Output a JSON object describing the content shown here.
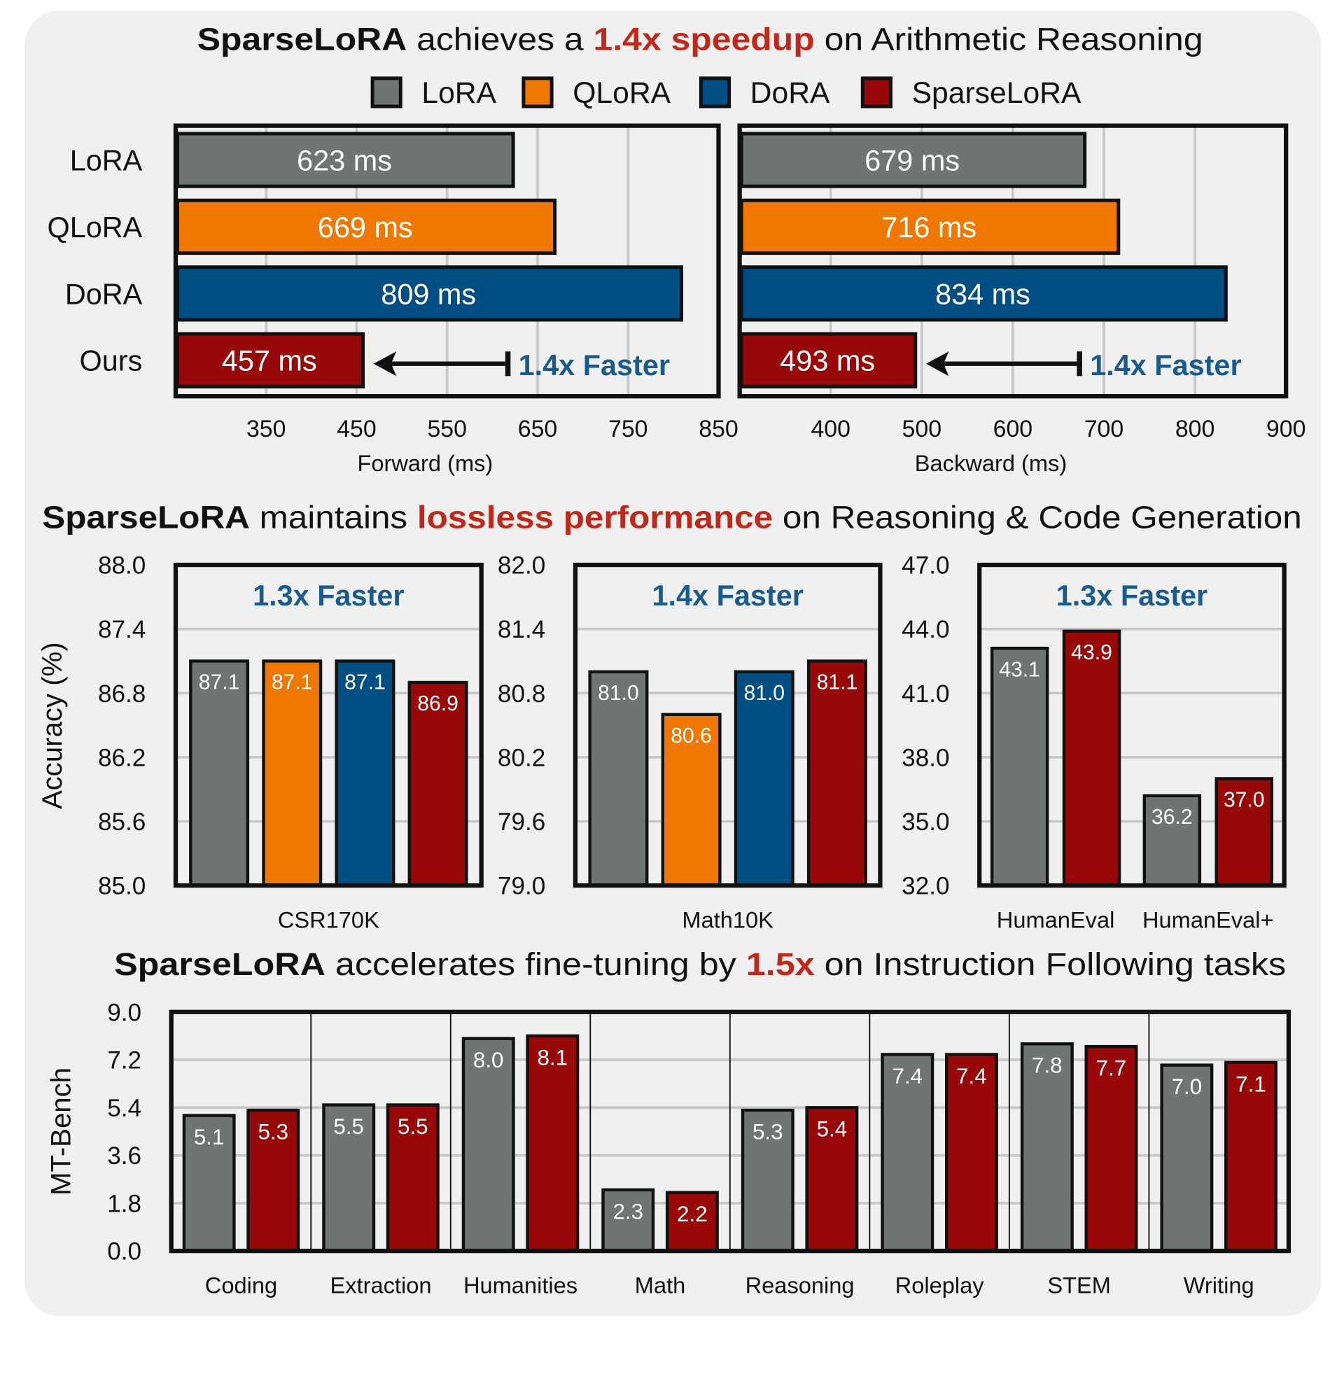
{
  "titles": [
    {
      "parts": [
        {
          "text": "SparseLoRA",
          "style": "bold"
        },
        {
          "text": " achieves a ",
          "style": "normal"
        },
        {
          "text": "1.4x speedup",
          "style": "bold-red"
        },
        {
          "text": " on Arithmetic Reasoning",
          "style": "normal"
        }
      ]
    },
    {
      "parts": [
        {
          "text": "SparseLoRA",
          "style": "bold"
        },
        {
          "text": " maintains ",
          "style": "normal"
        },
        {
          "text": "lossless performance",
          "style": "bold-red"
        },
        {
          "text": " on Reasoning & Code Generation",
          "style": "normal"
        }
      ]
    },
    {
      "parts": [
        {
          "text": "SparseLoRA",
          "style": "bold"
        },
        {
          "text": " accelerates fine-tuning by ",
          "style": "normal"
        },
        {
          "text": "1.5x",
          "style": "bold-red"
        },
        {
          "text": " on Instruction Following tasks",
          "style": "normal"
        }
      ]
    }
  ],
  "legend": [
    {
      "label": "LoRA",
      "color": "#6e7572"
    },
    {
      "label": "QLoRA",
      "color": "#f07800"
    },
    {
      "label": "DoRA",
      "color": "#004f84"
    },
    {
      "label": "SparseLoRA",
      "color": "#990808"
    }
  ],
  "colors": {
    "title_red": "#c0281a",
    "annotation_blue": "#1b5a8c",
    "panel": "#f0f0f0",
    "grid": "#c8c8c8"
  },
  "chart_data": [
    {
      "type": "bar",
      "orientation": "horizontal",
      "xlabel": "Forward (ms)",
      "xlim": [
        250,
        850
      ],
      "xticks": [
        350,
        450,
        550,
        650,
        750,
        850
      ],
      "grid": true,
      "categories": [
        "LoRA",
        "QLoRA",
        "DoRA",
        "Ours"
      ],
      "values": [
        623,
        669,
        809,
        457
      ],
      "value_labels": [
        "623 ms",
        "669 ms",
        "809 ms",
        "457 ms"
      ],
      "colors": [
        "#6e7572",
        "#f07800",
        "#004f84",
        "#990808"
      ],
      "annotation": "1.4x Faster"
    },
    {
      "type": "bar",
      "orientation": "horizontal",
      "xlabel": "Backward (ms)",
      "xlim": [
        300,
        900
      ],
      "xticks": [
        400,
        500,
        600,
        700,
        800,
        900
      ],
      "grid": true,
      "categories": [
        "LoRA",
        "QLoRA",
        "DoRA",
        "Ours"
      ],
      "values": [
        679,
        716,
        834,
        493
      ],
      "value_labels": [
        "679 ms",
        "716 ms",
        "834 ms",
        "493 ms"
      ],
      "colors": [
        "#6e7572",
        "#f07800",
        "#004f84",
        "#990808"
      ],
      "annotation": "1.4x Faster"
    },
    {
      "type": "bar",
      "orientation": "vertical",
      "ylabel": "Accuracy (%)",
      "ylim": [
        85.0,
        88.0
      ],
      "yticks": [
        "85.0",
        "85.6",
        "86.2",
        "86.8",
        "87.4",
        "88.0"
      ],
      "grid": true,
      "categories": [
        "CSR170K"
      ],
      "series": [
        {
          "name": "LoRA",
          "color": "#6e7572",
          "values": [
            87.1
          ]
        },
        {
          "name": "QLoRA",
          "color": "#f07800",
          "values": [
            87.1
          ]
        },
        {
          "name": "DoRA",
          "color": "#004f84",
          "values": [
            87.1
          ]
        },
        {
          "name": "SparseLoRA",
          "color": "#990808",
          "values": [
            86.9
          ]
        }
      ],
      "annotation": "1.3x Faster"
    },
    {
      "type": "bar",
      "orientation": "vertical",
      "ylim": [
        79.0,
        82.0
      ],
      "yticks": [
        "79.0",
        "79.6",
        "80.2",
        "80.8",
        "81.4",
        "82.0"
      ],
      "grid": true,
      "categories": [
        "Math10K"
      ],
      "series": [
        {
          "name": "LoRA",
          "color": "#6e7572",
          "values": [
            81.0
          ]
        },
        {
          "name": "QLoRA",
          "color": "#f07800",
          "values": [
            80.6
          ]
        },
        {
          "name": "DoRA",
          "color": "#004f84",
          "values": [
            81.0
          ]
        },
        {
          "name": "SparseLoRA",
          "color": "#990808",
          "values": [
            81.1
          ]
        }
      ],
      "annotation": "1.4x Faster"
    },
    {
      "type": "bar",
      "orientation": "vertical",
      "ylim": [
        32.0,
        47.0
      ],
      "yticks": [
        "32.0",
        "35.0",
        "38.0",
        "41.0",
        "44.0",
        "47.0"
      ],
      "grid": true,
      "categories": [
        "HumanEval",
        "HumanEval+"
      ],
      "series": [
        {
          "name": "LoRA",
          "color": "#6e7572",
          "values": [
            43.1,
            36.2
          ]
        },
        {
          "name": "SparseLoRA",
          "color": "#990808",
          "values": [
            43.9,
            37.0
          ]
        }
      ],
      "annotation": "1.3x Faster"
    },
    {
      "type": "bar",
      "orientation": "vertical",
      "ylabel": "MT-Bench",
      "ylim": [
        0.0,
        9.0
      ],
      "yticks": [
        "0.0",
        "1.8",
        "3.6",
        "5.4",
        "7.2",
        "9.0"
      ],
      "grid": true,
      "categories": [
        "Coding",
        "Extraction",
        "Humanities",
        "Math",
        "Reasoning",
        "Roleplay",
        "STEM",
        "Writing"
      ],
      "series": [
        {
          "name": "LoRA",
          "color": "#6e7572",
          "values": [
            5.1,
            5.5,
            8.0,
            2.3,
            5.3,
            7.4,
            7.8,
            7.0
          ]
        },
        {
          "name": "SparseLoRA",
          "color": "#990808",
          "values": [
            5.3,
            5.5,
            8.1,
            2.2,
            5.4,
            7.4,
            7.7,
            7.1
          ]
        }
      ]
    }
  ]
}
